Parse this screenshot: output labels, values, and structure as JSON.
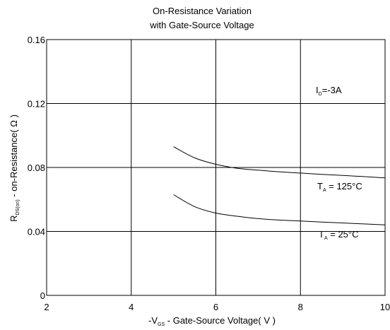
{
  "chart_data": {
    "type": "line",
    "title_line1": "On-Resistance Variation",
    "title_line2": "with Gate-Source Voltage",
    "xlabel": {
      "prefix": "-V",
      "sub": "GS",
      "rest": " - Gate-Source Voltage( V )"
    },
    "ylabel": {
      "prefix": "R",
      "sub": "DS(on)",
      "rest": " - on-Resistance( Ω )"
    },
    "xlim": [
      2,
      10
    ],
    "ylim": [
      0,
      0.16
    ],
    "xticks": [
      2,
      4,
      6,
      8,
      10
    ],
    "xtick_labels": [
      "2",
      "4",
      "6",
      "8",
      "10"
    ],
    "yticks": [
      0,
      0.04,
      0.08,
      0.12,
      0.16
    ],
    "ytick_labels": [
      "0",
      "0.04",
      "0.08",
      "0.12",
      "0.16"
    ],
    "grid": true,
    "annotation": {
      "prefix": "I",
      "sub": "D",
      "rest": "=-3A"
    },
    "series": [
      {
        "name": "T_A = 125°C",
        "label_prefix": "T",
        "label_sub": "A",
        "label_rest": " = 125°C",
        "x": [
          5.0,
          5.5,
          6.0,
          6.5,
          7.0,
          7.5,
          8.0,
          8.5,
          9.0,
          9.5,
          10.0
        ],
        "y": [
          0.093,
          0.086,
          0.082,
          0.0795,
          0.0783,
          0.0773,
          0.0765,
          0.0757,
          0.075,
          0.0743,
          0.0735
        ]
      },
      {
        "name": "T_A = 25°C",
        "label_prefix": "T",
        "label_sub": "A",
        "label_rest": " = 25°C",
        "x": [
          5.0,
          5.5,
          6.0,
          6.5,
          7.0,
          7.5,
          8.0,
          8.5,
          9.0,
          9.5,
          10.0
        ],
        "y": [
          0.063,
          0.0555,
          0.0515,
          0.0495,
          0.048,
          0.0471,
          0.0465,
          0.0459,
          0.0453,
          0.0447,
          0.0441
        ]
      }
    ]
  }
}
